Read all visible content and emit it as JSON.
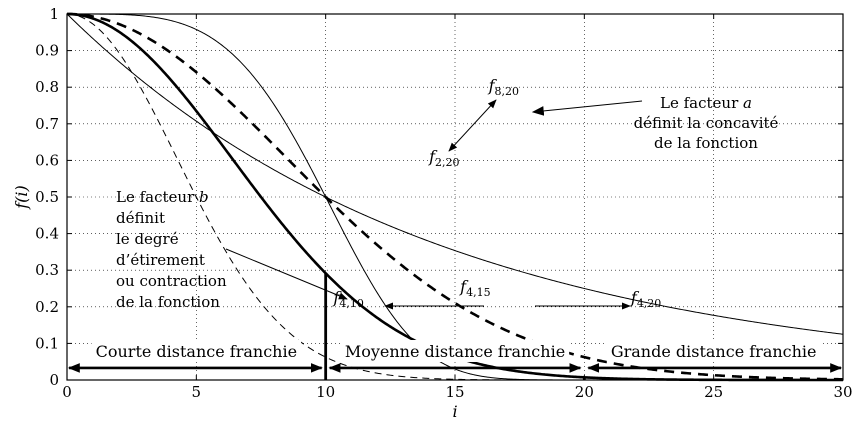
{
  "chart_data": {
    "type": "line",
    "xlabel": "i",
    "ylabel": "f(i)",
    "xlim": [
      0,
      30
    ],
    "ylim": [
      0,
      1
    ],
    "x_ticks": [
      0,
      5,
      10,
      15,
      20,
      25,
      30
    ],
    "y_ticks": [
      0,
      0.1,
      0.2,
      0.3,
      0.4,
      0.5,
      0.6,
      0.7,
      0.8,
      0.9,
      1
    ],
    "grid": true,
    "series": [
      {
        "name": "f",
        "sub": "2,20",
        "a": 2,
        "b": 20,
        "style": "thin-solid"
      },
      {
        "name": "f",
        "sub": "8,20",
        "a": 8,
        "b": 20,
        "style": "thin-solid"
      },
      {
        "name": "f",
        "sub": "4,20",
        "a": 4,
        "b": 20,
        "style": "thick-dashed"
      },
      {
        "name": "f",
        "sub": "4,15",
        "a": 4,
        "b": 15,
        "style": "thick-solid"
      },
      {
        "name": "f",
        "sub": "4,10",
        "a": 4,
        "b": 10,
        "style": "thin-dashed"
      }
    ],
    "curve_labels": [
      {
        "name": "f",
        "sub": "8,20",
        "x": 16.3,
        "y": 0.79
      },
      {
        "name": "f",
        "sub": "2,20",
        "x": 14.0,
        "y": 0.595
      },
      {
        "name": "f",
        "sub": "4,10",
        "x": 10.3,
        "y": 0.21
      },
      {
        "name": "f",
        "sub": "4,15",
        "x": 15.2,
        "y": 0.24
      },
      {
        "name": "f",
        "sub": "4,20",
        "x": 21.8,
        "y": 0.21
      }
    ],
    "annotations": {
      "concavity": [
        "Le facteur a",
        "définit la concavité",
        "de la fonction"
      ],
      "stretch": [
        "Le facteur b",
        "définit",
        "le degré",
        "d’étirement",
        "ou contraction",
        "de la fonction"
      ]
    },
    "zone_boundaries": [
      10,
      20
    ],
    "zones": [
      {
        "label": "Courte distance franchie",
        "from": 0,
        "to": 10
      },
      {
        "label": "Moyenne distance franchie",
        "from": 10,
        "to": 20
      },
      {
        "label": "Grande distance franchie",
        "from": 20,
        "to": 30
      }
    ]
  }
}
